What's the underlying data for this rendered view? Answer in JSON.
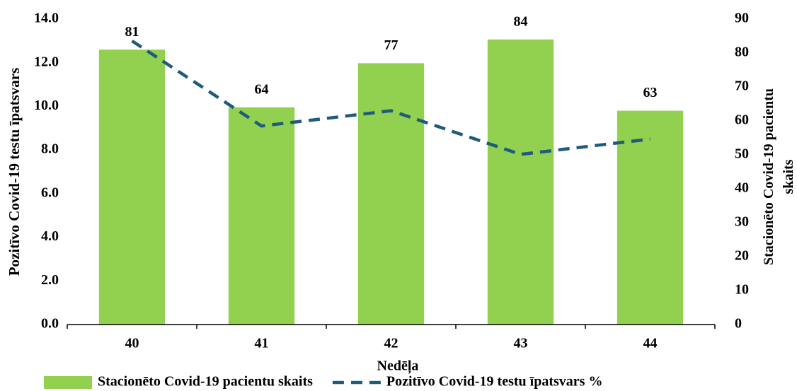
{
  "chart_data": {
    "type": "bar",
    "x_label": "Nedēļa",
    "y_label": "Pozitīvo Covid-19 testu īpatsvars",
    "y2_label": "Stacionēto Covid-19 pacientu skaits",
    "categories": [
      "40",
      "41",
      "42",
      "43",
      "44"
    ],
    "series": [
      {
        "name": "Stacionēto Covid-19 pacientu skaits",
        "type": "bar",
        "color": "#92d050",
        "axis": "y2",
        "values": [
          81,
          64,
          77,
          84,
          63
        ],
        "data_labels": true
      },
      {
        "name": "Pozitīvo Covid-19 testu īpatsvars %",
        "type": "line",
        "color": "#1f5c7a",
        "dashed": true,
        "values": [
          13.0,
          9.1,
          9.8,
          7.8,
          8.5
        ]
      }
    ],
    "ylim": [
      0,
      14
    ],
    "yticks": [
      {
        "value": 0,
        "label": "0.0"
      },
      {
        "value": 2,
        "label": "2.0"
      },
      {
        "value": 4,
        "label": "4.0"
      },
      {
        "value": 6,
        "label": "6.0"
      },
      {
        "value": 8,
        "label": "8.0"
      },
      {
        "value": 10,
        "label": "10.0"
      },
      {
        "value": 12,
        "label": "12.0"
      },
      {
        "value": 14,
        "label": "14.0"
      }
    ],
    "y2lim": [
      0,
      90
    ],
    "y2ticks": [
      0,
      10,
      20,
      30,
      40,
      50,
      60,
      70,
      80,
      90
    ],
    "grid": false,
    "legend": "bottom"
  }
}
